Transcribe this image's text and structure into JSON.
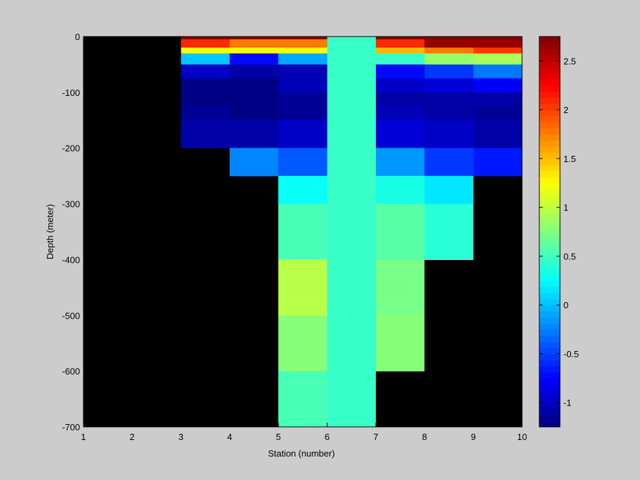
{
  "chart_data": {
    "type": "heatmap",
    "xlabel": "Station (number)",
    "ylabel": "Depth (meter)",
    "xlim": [
      1,
      10
    ],
    "ylim": [
      -700,
      0
    ],
    "xticks": [
      1,
      2,
      3,
      4,
      5,
      6,
      7,
      8,
      9,
      10
    ],
    "yticks": [
      0,
      -100,
      -200,
      -300,
      -400,
      -500,
      -600,
      -700
    ],
    "background_color": "#000000",
    "colorbar": {
      "colormap": "jet",
      "limits": [
        -1.25,
        2.75
      ],
      "ticks": [
        2.5,
        2,
        1.5,
        1,
        0.5,
        0,
        -0.5,
        -1
      ],
      "levels": 64
    },
    "cells": [
      {
        "x0": 3,
        "x1": 4,
        "y0": 0,
        "y1": -5,
        "value": 2.75
      },
      {
        "x0": 3,
        "x1": 4,
        "y0": -5,
        "y1": -20,
        "value": 2.1
      },
      {
        "x0": 3,
        "x1": 4,
        "y0": -20,
        "y1": -30,
        "value": 1.2
      },
      {
        "x0": 3,
        "x1": 4,
        "y0": -30,
        "y1": -50,
        "value": 0.05
      },
      {
        "x0": 3,
        "x1": 4,
        "y0": -50,
        "y1": -75,
        "value": -0.95
      },
      {
        "x0": 3,
        "x1": 4,
        "y0": -75,
        "y1": -125,
        "value": -1.25
      },
      {
        "x0": 3,
        "x1": 4,
        "y0": -125,
        "y1": -150,
        "value": -1.18
      },
      {
        "x0": 3,
        "x1": 4,
        "y0": -150,
        "y1": -200,
        "value": -1.12
      },
      {
        "x0": 4,
        "x1": 5,
        "y0": 0,
        "y1": -5,
        "value": 2.75
      },
      {
        "x0": 4,
        "x1": 5,
        "y0": -5,
        "y1": -20,
        "value": 1.75
      },
      {
        "x0": 4,
        "x1": 5,
        "y0": -20,
        "y1": -30,
        "value": 1.2
      },
      {
        "x0": 4,
        "x1": 5,
        "y0": -30,
        "y1": -50,
        "value": -0.7
      },
      {
        "x0": 4,
        "x1": 5,
        "y0": -50,
        "y1": -75,
        "value": -1.1
      },
      {
        "x0": 4,
        "x1": 5,
        "y0": -75,
        "y1": -150,
        "value": -1.2
      },
      {
        "x0": 4,
        "x1": 5,
        "y0": -150,
        "y1": -200,
        "value": -1.08
      },
      {
        "x0": 4,
        "x1": 5,
        "y0": -200,
        "y1": -250,
        "value": -0.25
      },
      {
        "x0": 5,
        "x1": 6,
        "y0": 0,
        "y1": -5,
        "value": 2.75
      },
      {
        "x0": 5,
        "x1": 6,
        "y0": -5,
        "y1": -20,
        "value": 1.75
      },
      {
        "x0": 5,
        "x1": 6,
        "y0": -20,
        "y1": -30,
        "value": 1.2
      },
      {
        "x0": 5,
        "x1": 6,
        "y0": -30,
        "y1": -50,
        "value": -0.1
      },
      {
        "x0": 5,
        "x1": 6,
        "y0": -50,
        "y1": -100,
        "value": -1.05
      },
      {
        "x0": 5,
        "x1": 6,
        "y0": -100,
        "y1": -150,
        "value": -1.15
      },
      {
        "x0": 5,
        "x1": 6,
        "y0": -150,
        "y1": -200,
        "value": -0.98
      },
      {
        "x0": 5,
        "x1": 6,
        "y0": -200,
        "y1": -250,
        "value": -0.4
      },
      {
        "x0": 5,
        "x1": 6,
        "y0": -250,
        "y1": -300,
        "value": 0.3
      },
      {
        "x0": 5,
        "x1": 6,
        "y0": -300,
        "y1": -400,
        "value": 0.55
      },
      {
        "x0": 5,
        "x1": 6,
        "y0": -400,
        "y1": -500,
        "value": 0.95
      },
      {
        "x0": 5,
        "x1": 6,
        "y0": -500,
        "y1": -600,
        "value": 0.8
      },
      {
        "x0": 5,
        "x1": 6,
        "y0": -600,
        "y1": -700,
        "value": 0.52
      },
      {
        "x0": 6,
        "x1": 7,
        "y0": 0,
        "y1": -700,
        "value": 0.45
      },
      {
        "x0": 7,
        "x1": 8,
        "y0": 0,
        "y1": -5,
        "value": 2.75
      },
      {
        "x0": 7,
        "x1": 8,
        "y0": -5,
        "y1": -20,
        "value": 2.1
      },
      {
        "x0": 7,
        "x1": 8,
        "y0": -20,
        "y1": -30,
        "value": 1.55
      },
      {
        "x0": 7,
        "x1": 8,
        "y0": -30,
        "y1": -50,
        "value": 0.45
      },
      {
        "x0": 7,
        "x1": 8,
        "y0": -50,
        "y1": -75,
        "value": -0.75
      },
      {
        "x0": 7,
        "x1": 8,
        "y0": -75,
        "y1": -100,
        "value": -1.0
      },
      {
        "x0": 7,
        "x1": 8,
        "y0": -100,
        "y1": -125,
        "value": -1.08
      },
      {
        "x0": 7,
        "x1": 8,
        "y0": -125,
        "y1": -150,
        "value": -1.05
      },
      {
        "x0": 7,
        "x1": 8,
        "y0": -150,
        "y1": -200,
        "value": -0.9
      },
      {
        "x0": 7,
        "x1": 8,
        "y0": -200,
        "y1": -250,
        "value": -0.15
      },
      {
        "x0": 7,
        "x1": 8,
        "y0": -250,
        "y1": -300,
        "value": 0.35
      },
      {
        "x0": 7,
        "x1": 8,
        "y0": -300,
        "y1": -400,
        "value": 0.6
      },
      {
        "x0": 7,
        "x1": 8,
        "y0": -400,
        "y1": -500,
        "value": 0.7
      },
      {
        "x0": 7,
        "x1": 8,
        "y0": -500,
        "y1": -600,
        "value": 0.8
      },
      {
        "x0": 8,
        "x1": 9,
        "y0": 0,
        "y1": -5,
        "value": 2.75
      },
      {
        "x0": 8,
        "x1": 9,
        "y0": -5,
        "y1": -20,
        "value": 2.65
      },
      {
        "x0": 8,
        "x1": 9,
        "y0": -20,
        "y1": -30,
        "value": 1.75
      },
      {
        "x0": 8,
        "x1": 9,
        "y0": -30,
        "y1": -50,
        "value": 0.85
      },
      {
        "x0": 8,
        "x1": 9,
        "y0": -50,
        "y1": -75,
        "value": -0.55
      },
      {
        "x0": 8,
        "x1": 9,
        "y0": -75,
        "y1": -100,
        "value": -0.9
      },
      {
        "x0": 8,
        "x1": 9,
        "y0": -100,
        "y1": -150,
        "value": -1.1
      },
      {
        "x0": 8,
        "x1": 9,
        "y0": -150,
        "y1": -200,
        "value": -1.0
      },
      {
        "x0": 8,
        "x1": 9,
        "y0": -200,
        "y1": -250,
        "value": -0.55
      },
      {
        "x0": 8,
        "x1": 9,
        "y0": -250,
        "y1": -300,
        "value": 0.15
      },
      {
        "x0": 8,
        "x1": 9,
        "y0": -300,
        "y1": -400,
        "value": 0.4
      },
      {
        "x0": 9,
        "x1": 10,
        "y0": 0,
        "y1": -5,
        "value": 2.75
      },
      {
        "x0": 9,
        "x1": 10,
        "y0": -5,
        "y1": -20,
        "value": 2.65
      },
      {
        "x0": 9,
        "x1": 10,
        "y0": -20,
        "y1": -30,
        "value": 2.0
      },
      {
        "x0": 9,
        "x1": 10,
        "y0": -30,
        "y1": -50,
        "value": 0.9
      },
      {
        "x0": 9,
        "x1": 10,
        "y0": -50,
        "y1": -75,
        "value": -0.3
      },
      {
        "x0": 9,
        "x1": 10,
        "y0": -75,
        "y1": -100,
        "value": -0.78
      },
      {
        "x0": 9,
        "x1": 10,
        "y0": -100,
        "y1": -125,
        "value": -1.1
      },
      {
        "x0": 9,
        "x1": 10,
        "y0": -125,
        "y1": -150,
        "value": -1.15
      },
      {
        "x0": 9,
        "x1": 10,
        "y0": -150,
        "y1": -200,
        "value": -1.1
      },
      {
        "x0": 9,
        "x1": 10,
        "y0": -200,
        "y1": -250,
        "value": -0.65
      }
    ]
  }
}
